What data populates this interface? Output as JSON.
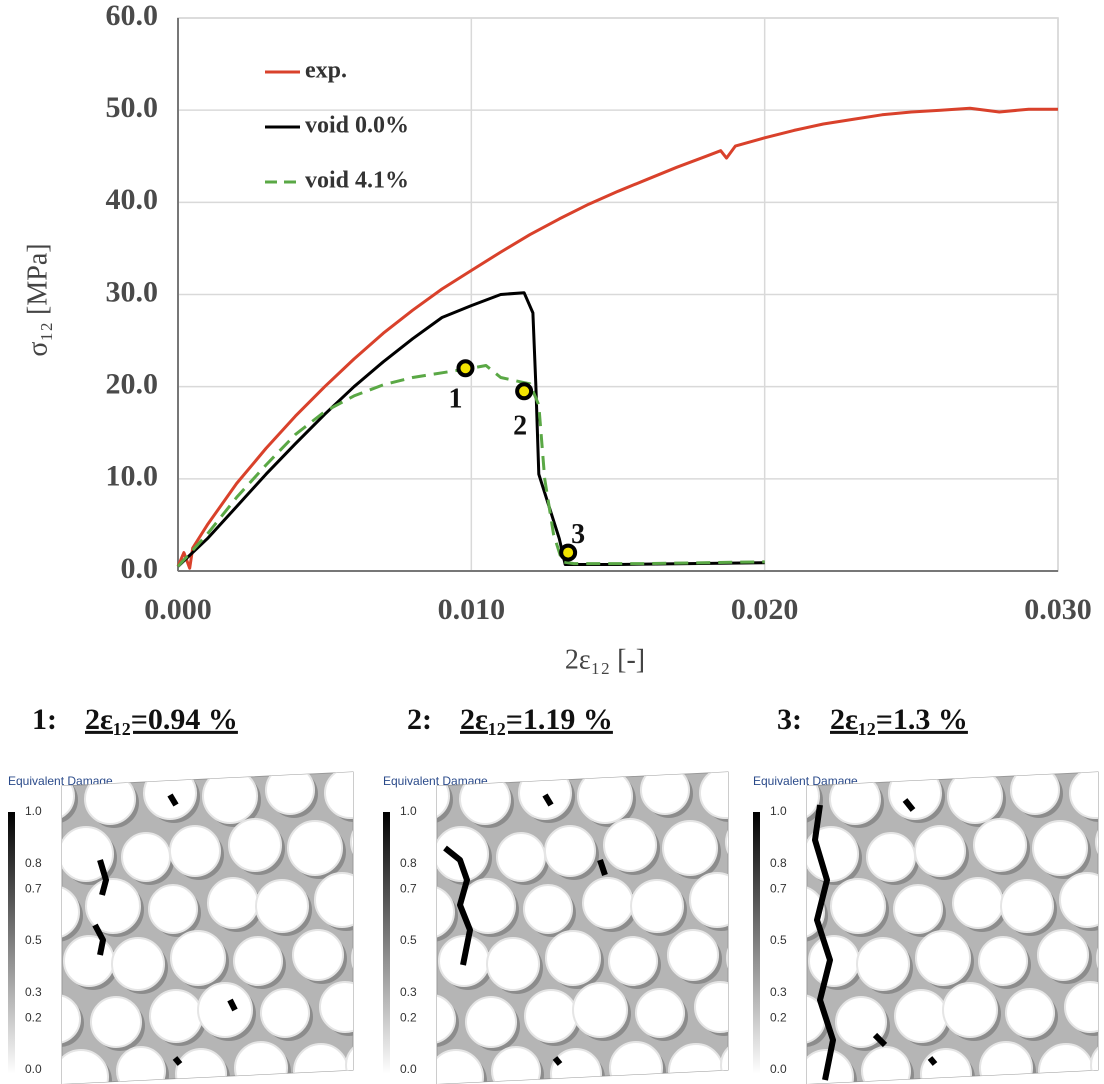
{
  "chart_data": {
    "type": "line",
    "x_label": "2ε₁₂ [-]",
    "y_label": "σ₁₂ [MPa]",
    "xlim": [
      0,
      0.03
    ],
    "ylim": [
      0,
      60
    ],
    "xticks": [
      {
        "value": 0,
        "label": "0.000"
      },
      {
        "value": 0.01,
        "label": "0.010"
      },
      {
        "value": 0.02,
        "label": "0.020"
      },
      {
        "value": 0.03,
        "label": "0.030"
      }
    ],
    "yticks": [
      {
        "value": 0,
        "label": "0.0"
      },
      {
        "value": 10,
        "label": "10.0"
      },
      {
        "value": 20,
        "label": "20.0"
      },
      {
        "value": 30,
        "label": "30.0"
      },
      {
        "value": 40,
        "label": "40.0"
      },
      {
        "value": 50,
        "label": "50.0"
      },
      {
        "value": 60,
        "label": "60.0"
      }
    ],
    "grid": true,
    "legend": "upper left",
    "series": [
      {
        "name": "exp.",
        "color": "#d9412b",
        "dash": false,
        "x": [
          0,
          0.0002,
          0.0004,
          0.0005,
          0.001,
          0.002,
          0.003,
          0.004,
          0.005,
          0.006,
          0.007,
          0.008,
          0.009,
          0.01,
          0.011,
          0.012,
          0.013,
          0.014,
          0.015,
          0.016,
          0.017,
          0.018,
          0.0185,
          0.0187,
          0.019,
          0.02,
          0.021,
          0.022,
          0.023,
          0.024,
          0.025,
          0.026,
          0.027,
          0.028,
          0.029,
          0.03
        ],
        "values": [
          0.5,
          2,
          0.3,
          2.5,
          5,
          9.5,
          13.3,
          16.8,
          20,
          23,
          25.8,
          28.3,
          30.6,
          32.6,
          34.6,
          36.5,
          38.2,
          39.8,
          41.2,
          42.5,
          43.8,
          45,
          45.6,
          44.8,
          46.1,
          47,
          47.8,
          48.5,
          49,
          49.5,
          49.8,
          50,
          50.2,
          49.8,
          50.1,
          50.1
        ]
      },
      {
        "name": "void  0.0%",
        "color": "#000000",
        "dash": false,
        "x": [
          0,
          0.001,
          0.002,
          0.003,
          0.004,
          0.005,
          0.006,
          0.007,
          0.008,
          0.009,
          0.01,
          0.011,
          0.0118,
          0.0121,
          0.0122,
          0.0123,
          0.013,
          0.0132,
          0.015,
          0.02
        ],
        "values": [
          0.5,
          3.5,
          7,
          10.5,
          13.8,
          17,
          20,
          22.7,
          25.2,
          27.5,
          28.8,
          30,
          30.2,
          28,
          20,
          10.5,
          3.5,
          0.7,
          0.7,
          0.9
        ]
      },
      {
        "name": "void 4.1%",
        "color": "#5aa845",
        "dash": true,
        "x": [
          0,
          0.001,
          0.002,
          0.003,
          0.004,
          0.005,
          0.006,
          0.007,
          0.008,
          0.009,
          0.01,
          0.0105,
          0.011,
          0.012,
          0.0123,
          0.0125,
          0.0128,
          0.0131,
          0.0135,
          0.016,
          0.02
        ],
        "values": [
          0.5,
          4,
          8,
          11.5,
          14.8,
          17.3,
          19,
          20.2,
          21,
          21.5,
          22,
          22.3,
          21,
          20.3,
          18,
          10,
          4,
          1,
          0.8,
          0.8,
          1
        ]
      }
    ],
    "markers": {
      "x": [
        0.0098,
        0.0118,
        0.0133
      ],
      "y": [
        22,
        19.5,
        2
      ],
      "labels": [
        "1",
        "2",
        "3"
      ]
    }
  },
  "panels": [
    {
      "index": "1:",
      "strain": "2ε₁₂=0.94 %",
      "colorbar": {
        "title": "Equivalent Damage",
        "ticks": [
          "1.0",
          "0.8",
          "0.7",
          "0.5",
          "0.3",
          "0.2",
          "0.0"
        ]
      }
    },
    {
      "index": "2:",
      "strain": "2ε₁₂=1.19 %",
      "colorbar": {
        "title": "Equivalent Damage",
        "ticks": [
          "1.0",
          "0.8",
          "0.7",
          "0.5",
          "0.3",
          "0.2",
          "0.0"
        ]
      }
    },
    {
      "index": "3:",
      "strain": "2ε₁₂=1.3 %",
      "colorbar": {
        "title": "Equivalent Damage",
        "ticks": [
          "1.0",
          "0.8",
          "0.7",
          "0.5",
          "0.3",
          "0.2",
          "0.0"
        ]
      }
    }
  ]
}
